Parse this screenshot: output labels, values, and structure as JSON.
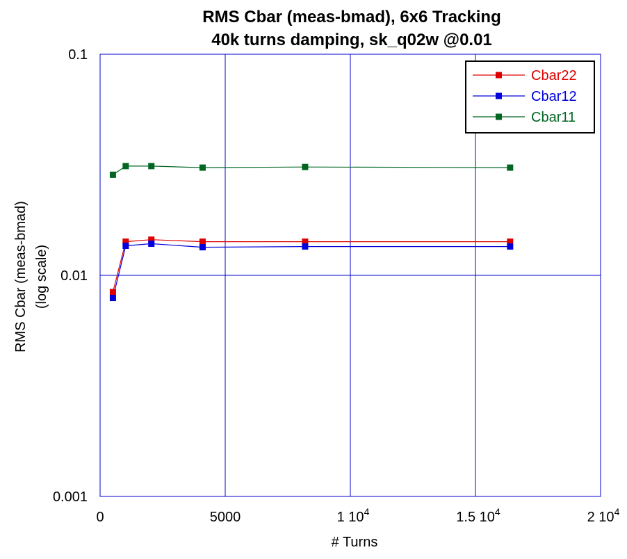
{
  "chart_data": {
    "type": "line",
    "title": "RMS Cbar (meas-bmad), 6x6 Tracking",
    "subtitle": "40k turns damping, sk_q02w @0.01",
    "xlabel": "# Turns",
    "ylabel": "RMS Cbar (meas-bmad)",
    "ylabel2": "(log scale)",
    "xlim": [
      0,
      20000
    ],
    "ylim": [
      0.001,
      0.1
    ],
    "yscale": "log",
    "grid": true,
    "legend_position": "top-right",
    "x_ticks": [
      {
        "value": 0,
        "base": "0",
        "exp": ""
      },
      {
        "value": 5000,
        "base": "5000",
        "exp": ""
      },
      {
        "value": 10000,
        "base": "1 10",
        "exp": "4"
      },
      {
        "value": 15000,
        "base": "1.5 10",
        "exp": "4"
      },
      {
        "value": 20000,
        "base": "2 10",
        "exp": "4"
      }
    ],
    "y_ticks": [
      {
        "value": 0.1,
        "label": "0.1"
      },
      {
        "value": 0.01,
        "label": "0.01"
      },
      {
        "value": 0.001,
        "label": "0.001"
      }
    ],
    "x": [
      512,
      1024,
      2048,
      4096,
      8192,
      16384
    ],
    "series": [
      {
        "name": "Cbar22",
        "color": "#dd0000",
        "values": [
          0.0084,
          0.0142,
          0.0145,
          0.0142,
          0.0142,
          0.0142
        ]
      },
      {
        "name": "Cbar12",
        "color": "#0000dd",
        "values": [
          0.0079,
          0.0136,
          0.0139,
          0.0134,
          0.0135,
          0.0135
        ]
      },
      {
        "name": "Cbar11",
        "color": "#006622",
        "values": [
          0.0285,
          0.0312,
          0.0312,
          0.0307,
          0.0309,
          0.0307
        ]
      }
    ]
  }
}
